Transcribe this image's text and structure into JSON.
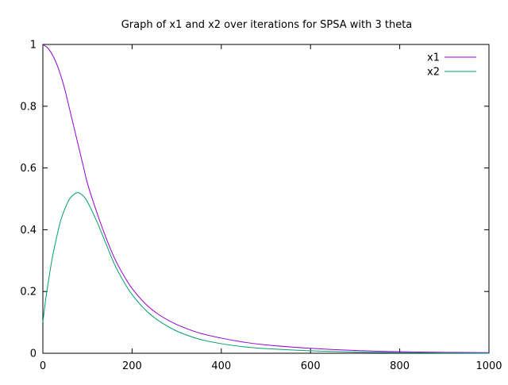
{
  "chart_data": {
    "type": "line",
    "title": "Graph of x1 and x2 over iterations for SPSA with 3 theta",
    "xlabel": "",
    "ylabel": "",
    "xlim": [
      0,
      1000
    ],
    "ylim": [
      0,
      1
    ],
    "xticks": [
      0,
      200,
      400,
      600,
      800,
      1000
    ],
    "yticks": [
      0,
      0.2,
      0.4,
      0.6,
      0.8,
      1
    ],
    "xtick_labels": [
      "0",
      "200",
      "400",
      "600",
      "800",
      "1000"
    ],
    "ytick_labels": [
      "0",
      "0.2",
      "0.4",
      "0.6",
      "0.8",
      "1"
    ],
    "grid": false,
    "legend_position": "top-right",
    "series": [
      {
        "name": "x1",
        "color": "#9400d3",
        "x": [
          0,
          10,
          20,
          30,
          40,
          50,
          60,
          70,
          80,
          90,
          100,
          120,
          140,
          160,
          180,
          200,
          230,
          260,
          300,
          350,
          400,
          450,
          500,
          600,
          700,
          800,
          900,
          1000
        ],
        "y": [
          1.0,
          0.99,
          0.97,
          0.94,
          0.9,
          0.85,
          0.79,
          0.73,
          0.67,
          0.61,
          0.55,
          0.46,
          0.38,
          0.31,
          0.255,
          0.21,
          0.16,
          0.125,
          0.093,
          0.066,
          0.049,
          0.036,
          0.027,
          0.016,
          0.009,
          0.005,
          0.003,
          0.002
        ]
      },
      {
        "name": "x2",
        "color": "#009e73",
        "x": [
          0,
          5,
          10,
          20,
          30,
          40,
          50,
          60,
          70,
          80,
          90,
          100,
          120,
          140,
          160,
          180,
          200,
          230,
          260,
          300,
          350,
          400,
          450,
          500,
          600,
          700,
          800,
          900,
          1000
        ],
        "y": [
          0.1,
          0.16,
          0.21,
          0.3,
          0.37,
          0.43,
          0.47,
          0.5,
          0.515,
          0.52,
          0.51,
          0.49,
          0.43,
          0.36,
          0.29,
          0.235,
          0.19,
          0.14,
          0.105,
          0.072,
          0.046,
          0.031,
          0.021,
          0.015,
          0.008,
          0.004,
          0.002,
          0.001,
          0.0
        ]
      }
    ]
  }
}
